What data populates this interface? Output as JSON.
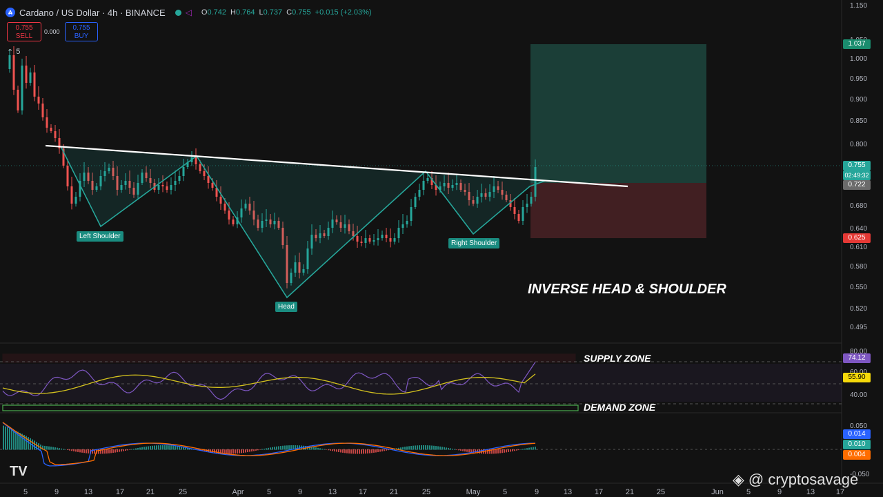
{
  "header": {
    "logo_text": "₳",
    "title": "Cardano / US Dollar · 4h · BINANCE",
    "share_icon": "share-icon",
    "ohlc": [
      {
        "k": "O",
        "v": "0.742"
      },
      {
        "k": "H",
        "v": "0.764"
      },
      {
        "k": "L",
        "v": "0.737"
      },
      {
        "k": "C",
        "v": "0.755"
      },
      {
        "k": "",
        "v": "+0.015 (+2.03%)"
      }
    ]
  },
  "trade": {
    "sell_price": "0.755",
    "sell_label": "SELL",
    "spread": "0.000",
    "buy_price": "0.755",
    "buy_label": "BUY"
  },
  "layers_toggle": {
    "icon": "chevron-up-icon",
    "count": "5"
  },
  "price_axis": {
    "ticks": [
      "1.150",
      "1.050",
      "1.000",
      "0.950",
      "0.900",
      "0.850",
      "0.800",
      "0.750",
      "0.680",
      "0.640",
      "0.610",
      "0.580",
      "0.550",
      "0.520",
      "0.495"
    ],
    "tags": {
      "target": "1.037",
      "last": "0.755",
      "countdown": "02:49:32",
      "entry": "0.722",
      "stop": "0.625"
    }
  },
  "rsi_axis": {
    "ticks": [
      "80.00",
      "60.00",
      "40.00"
    ],
    "tags": {
      "rsi": "74.12",
      "ma": "55.90"
    }
  },
  "macd_axis": {
    "ticks": [
      "0.050",
      "-0.050"
    ],
    "tags": {
      "a": "0.014",
      "b": "0.010",
      "c": "0.004"
    }
  },
  "time_axis": [
    "5",
    "9",
    "13",
    "17",
    "21",
    "25",
    "Apr",
    "5",
    "9",
    "13",
    "17",
    "21",
    "25",
    "May",
    "5",
    "9",
    "13",
    "17",
    "21",
    "25",
    "Jun",
    "5",
    "9",
    "13",
    "17"
  ],
  "annotations": {
    "left_shoulder": "Left Shoulder",
    "head": "Head",
    "right_shoulder": "Right Shoulder",
    "pattern_title": "INVERSE HEAD & SHOULDER",
    "supply_zone": "SUPPLY ZONE",
    "demand_zone": "DEMAND ZONE"
  },
  "watermark": {
    "text": "@ cryptosavage",
    "icon": "binance-icon"
  },
  "tv_logo": "TV",
  "colors": {
    "up": "#26a69a",
    "down": "#ef5350",
    "pattern": "#26a69a",
    "neckline": "#ffffff",
    "target_zone": "#1f4d44",
    "stop_zone": "#4a2226",
    "rsi": "#7e57c2",
    "rsi_ma": "#d4c21e",
    "supply": "#f23645",
    "demand": "#4caf50",
    "macd": "#2962ff",
    "signal": "#ff6d00"
  },
  "chart_data": {
    "type": "candlestick",
    "instrument": "Cardano / US Dollar",
    "timeframe": "4h",
    "exchange": "BINANCE",
    "pattern_points": [
      {
        "label": "Left Shoulder",
        "price": 0.64
      },
      {
        "label": "Head",
        "price": 0.535
      },
      {
        "label": "Right Shoulder",
        "price": 0.635
      }
    ],
    "neckline": {
      "start_price": 0.79,
      "end_price": 0.722
    },
    "trade_box": {
      "target": 1.037,
      "entry": 0.722,
      "stop": 0.625
    },
    "rsi": {
      "value": 74.12,
      "ma": 55.9,
      "levels": [
        80,
        60,
        40
      ]
    },
    "macd": {
      "values": [
        0.014,
        0.01,
        0.004
      ]
    }
  }
}
